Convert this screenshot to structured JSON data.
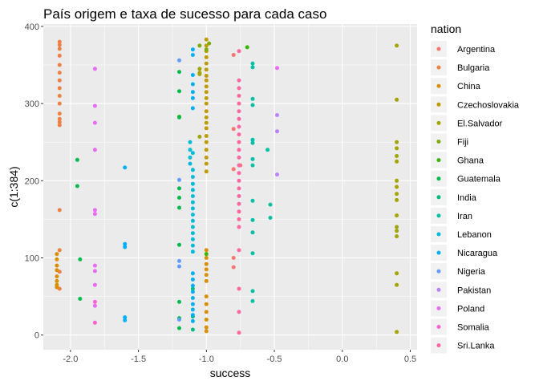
{
  "chart_data": {
    "type": "scatter",
    "title": "País origem e taxa de sucesso para cada caso",
    "xlabel": "success",
    "ylabel": "c(1:384)",
    "xlim": [
      -2.2,
      0.55
    ],
    "ylim": [
      -19,
      403
    ],
    "xticks": [
      -2.0,
      -1.5,
      -1.0,
      -0.5,
      0.0,
      0.5
    ],
    "xtick_labels": [
      "-2.0",
      "-1.5",
      "-1.0",
      "-0.5",
      "0.0",
      "0.5"
    ],
    "yticks": [
      0,
      100,
      200,
      300,
      400
    ],
    "ytick_labels": [
      "0",
      "100",
      "200",
      "300",
      "400"
    ],
    "grid": true,
    "legend": {
      "title": "nation",
      "position": "right"
    },
    "series": [
      {
        "name": "Argentina",
        "color": "#F8766D",
        "x": [
          -0.8,
          -0.8,
          -0.75,
          -0.8,
          -0.8,
          -0.8
        ],
        "y": [
          363,
          267,
          220,
          88,
          100,
          215
        ]
      },
      {
        "name": "Bulgaria",
        "color": "#EE8044",
        "x": [
          -2.08,
          -2.08,
          -2.08,
          -2.08,
          -2.08,
          -2.08,
          -2.08,
          -2.08,
          -2.08,
          -2.08,
          -2.08,
          -2.08,
          -2.08,
          -2.08,
          -2.08,
          -2.08,
          -2.08,
          -2.08
        ],
        "y": [
          380,
          376,
          371,
          362,
          350,
          340,
          330,
          320,
          310,
          300,
          287,
          280,
          276,
          272,
          162,
          110,
          82,
          60
        ]
      },
      {
        "name": "China",
        "color": "#D89000",
        "x": [
          -2.1,
          -2.1,
          -2.1,
          -2.1,
          -2.1,
          -2.1,
          -2.1,
          -2.1,
          -1.0,
          -1.0,
          -1.0,
          -1.0,
          -1.0,
          -1.0,
          -1.0,
          -1.0,
          -1.0,
          -1.0,
          -1.0,
          -1.0
        ],
        "y": [
          105,
          98,
          90,
          84,
          76,
          70,
          65,
          62,
          110,
          100,
          92,
          85,
          78,
          70,
          50,
          40,
          30,
          20,
          10,
          5
        ]
      },
      {
        "name": "Czechoslovakia",
        "color": "#C09B00",
        "x": [
          -1.0,
          -1.0,
          -1.0,
          -1.0,
          -1.0,
          -1.0,
          -1.0,
          -1.0,
          -1.0,
          -1.0,
          -1.0,
          -1.0,
          -1.0,
          -1.0,
          -1.0,
          -1.0,
          -1.0,
          -1.0,
          -1.0,
          -1.0,
          -1.0,
          -1.0
        ],
        "y": [
          383,
          375,
          368,
          360,
          352,
          344,
          336,
          330,
          322,
          315,
          307,
          300,
          290,
          282,
          275,
          268,
          258,
          250,
          240,
          230,
          222,
          212
        ]
      },
      {
        "name": "El.Salvador",
        "color": "#A3A500",
        "x": [
          0.4,
          0.4,
          0.4,
          0.4,
          0.4,
          0.4,
          0.4,
          0.4,
          0.4,
          0.4,
          0.4,
          0.4,
          0.4,
          0.4,
          0.4,
          0.4,
          0.4,
          -1.05,
          -1.05,
          -1.05,
          -1.05
        ],
        "y": [
          375,
          305,
          250,
          242,
          232,
          225,
          200,
          192,
          183,
          175,
          140,
          135,
          128,
          80,
          65,
          4,
          155,
          345,
          340,
          338,
          257
        ]
      },
      {
        "name": "Fiji",
        "color": "#7CAE00",
        "x": [
          -1.05,
          -1.0,
          -0.98
        ],
        "y": [
          375,
          370,
          378
        ]
      },
      {
        "name": "Ghana",
        "color": "#39B600",
        "x": [
          -0.7,
          -1.2,
          -1.0
        ],
        "y": [
          373,
          283,
          105
        ]
      },
      {
        "name": "Guatemala",
        "color": "#00BB4E",
        "x": [
          -1.95,
          -1.95,
          -1.93,
          -1.93,
          -1.2,
          -1.2,
          -1.2,
          -1.2,
          -1.2,
          -1.2,
          -1.2,
          -1.2,
          -1.2,
          -1.2
        ],
        "y": [
          227,
          193,
          98,
          47,
          341,
          316,
          282,
          190,
          178,
          165,
          117,
          43,
          22,
          9
        ]
      },
      {
        "name": "India",
        "color": "#00BF7D",
        "x": [
          -1.1,
          -1.1,
          -1.1
        ],
        "y": [
          7,
          24,
          60
        ]
      },
      {
        "name": "Iran",
        "color": "#00C1A3",
        "x": [
          -0.66,
          -0.66,
          -0.66,
          -0.66,
          -0.66,
          -0.66,
          -0.66,
          -0.66,
          -0.66,
          -0.66,
          -0.66,
          -0.66,
          -0.66,
          -0.55,
          -0.53,
          -0.53,
          -0.66
        ],
        "y": [
          352,
          347,
          306,
          298,
          253,
          249,
          228,
          220,
          174,
          149,
          133,
          106,
          57,
          240,
          169,
          152,
          44
        ]
      },
      {
        "name": "Lebanon",
        "color": "#00BCD8",
        "x": [
          -1.12,
          -1.12,
          -1.12,
          -1.12,
          -1.1,
          -1.1,
          -1.1,
          -1.1,
          -1.1,
          -1.1,
          -1.1,
          -1.1,
          -1.1,
          -1.1,
          -1.1,
          -1.1,
          -1.1,
          -1.1,
          -1.1
        ],
        "y": [
          250,
          240,
          230,
          222,
          214,
          205,
          196,
          188,
          180,
          172,
          164,
          156,
          148,
          140,
          132,
          124,
          116,
          108,
          236
        ]
      },
      {
        "name": "Nicaragua",
        "color": "#00B0F6",
        "x": [
          -1.1,
          -1.1,
          -1.1,
          -1.1,
          -1.1,
          -1.1,
          -1.1,
          -1.1,
          -1.1,
          -1.1,
          -1.1,
          -1.1,
          -1.1,
          -1.1,
          -1.1,
          -1.1,
          -1.6,
          -1.6,
          -1.6,
          -1.6,
          -1.6
        ],
        "y": [
          370,
          363,
          337,
          325,
          315,
          307,
          294,
          80,
          72,
          64,
          56,
          48,
          40,
          33,
          26,
          18,
          217,
          118,
          114,
          23,
          19
        ]
      },
      {
        "name": "Nigeria",
        "color": "#619CFF",
        "x": [
          -1.2,
          -1.2,
          -1.2,
          -1.2,
          -1.2
        ],
        "y": [
          356,
          201,
          96,
          89,
          20
        ]
      },
      {
        "name": "Pakistan",
        "color": "#B983FF",
        "x": [
          -0.48,
          -0.48,
          -0.48
        ],
        "y": [
          285,
          264,
          208
        ]
      },
      {
        "name": "Poland",
        "color": "#E76BF3",
        "x": [
          -1.82,
          -1.82,
          -1.82,
          -1.82,
          -1.82,
          -1.82,
          -1.82,
          -1.82,
          -1.82,
          -1.82,
          -0.48
        ],
        "y": [
          345,
          297,
          275,
          240,
          162,
          157,
          90,
          83,
          65,
          38,
          346
        ]
      },
      {
        "name": "Somalia",
        "color": "#FD61D1",
        "x": [
          -1.82,
          -1.82
        ],
        "y": [
          16,
          43
        ]
      },
      {
        "name": "Sri.Lanka",
        "color": "#FF67A4",
        "x": [
          -0.76,
          -0.76,
          -0.76,
          -0.76,
          -0.76,
          -0.76,
          -0.76,
          -0.76,
          -0.76,
          -0.76,
          -0.76,
          -0.76,
          -0.76,
          -0.76,
          -0.76,
          -0.76,
          -0.76,
          -0.76,
          -0.76,
          -0.76,
          -0.76,
          -0.76,
          -0.76,
          -0.76,
          -0.76
        ],
        "y": [
          368,
          330,
          320,
          310,
          300,
          290,
          280,
          270,
          260,
          250,
          240,
          230,
          220,
          210,
          200,
          190,
          180,
          170,
          160,
          150,
          140,
          110,
          60,
          30,
          3
        ]
      }
    ]
  }
}
